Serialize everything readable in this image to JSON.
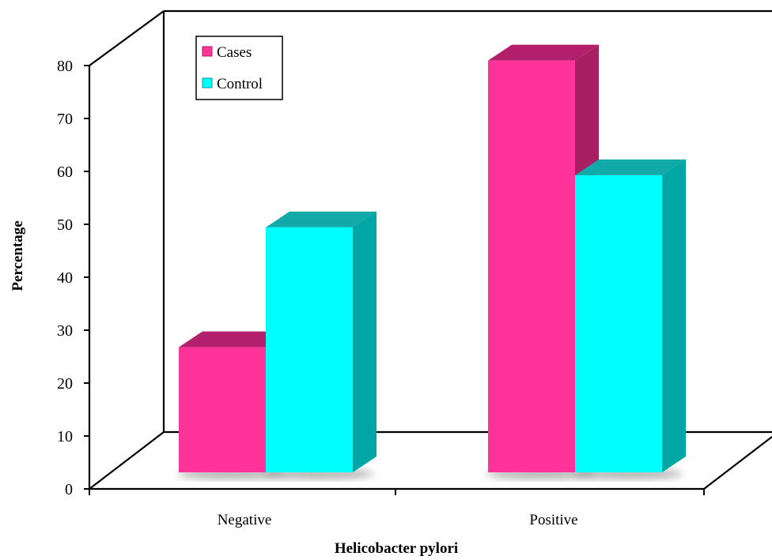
{
  "chart_data": {
    "type": "bar",
    "title": "",
    "xlabel": "Helicobacter pylori",
    "ylabel": "Percentage",
    "categories": [
      "Negative",
      "Positive"
    ],
    "ylim": [
      0,
      80
    ],
    "yticks": [
      "0",
      "10",
      "20",
      "30",
      "40",
      "50",
      "60",
      "70",
      "80"
    ],
    "series": [
      {
        "name": "Cases",
        "values": [
          24,
          79
        ],
        "color": "#ff3399"
      },
      {
        "name": "Control",
        "values": [
          47,
          57
        ],
        "color": "#00ffff"
      }
    ],
    "legend_position": "top-left",
    "grid": false,
    "style": "3d-clustered-bar"
  }
}
